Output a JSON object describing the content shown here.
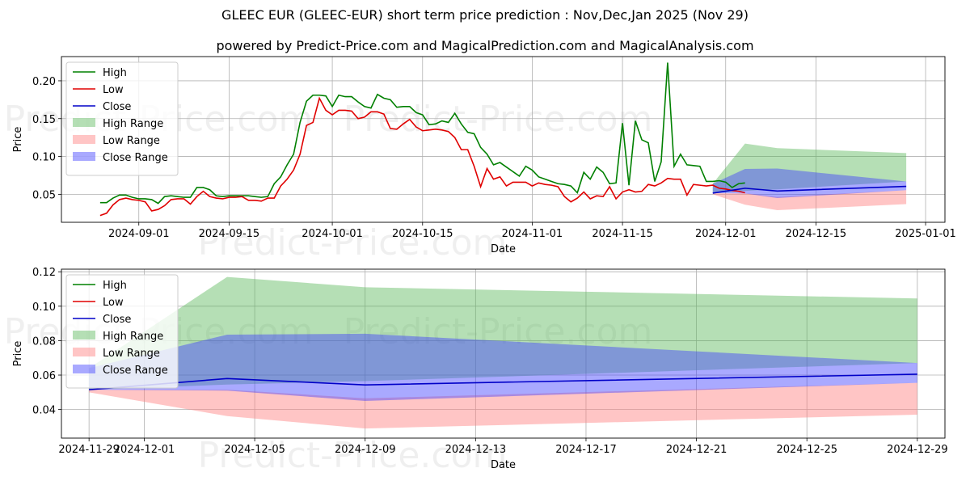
{
  "header": {
    "title": "GLEEC EUR (GLEEC-EUR) short term price prediction : Nov,Dec,Jan 2025 (Nov 29)",
    "subtitle": "powered by Predict-Price.com and MagicalPrediction.com and MagicalAnalysis.com"
  },
  "watermark": "Predict-Price.com",
  "colors": {
    "high": "#008000",
    "low": "#e00000",
    "close": "#0000c8",
    "high_range": "#5cb85c",
    "low_range": "#ff7f7f",
    "close_range": "#4040ff",
    "grid": "#b0b0b0"
  },
  "legend": [
    "High",
    "Low",
    "Close",
    "High Range",
    "Low Range",
    "Close Range"
  ],
  "chart_data": [
    {
      "type": "line",
      "xlabel": "Date",
      "ylabel": "Price",
      "xlim": [
        "2024-08-20",
        "2025-01-04"
      ],
      "ylim": [
        0.013,
        0.232
      ],
      "x_ticks": [
        "2024-09-01",
        "2024-09-15",
        "2024-10-01",
        "2024-10-15",
        "2024-11-01",
        "2024-11-15",
        "2024-12-01",
        "2024-12-15",
        "2025-01-01"
      ],
      "y_ticks": [
        0.05,
        0.1,
        0.15,
        0.2
      ],
      "y_tick_labels": [
        "0.05",
        "0.10",
        "0.15",
        "0.20"
      ],
      "history_start": "2024-08-26",
      "series": [
        {
          "name": "High",
          "values": [
            0.039,
            0.039,
            0.045,
            0.049,
            0.049,
            0.046,
            0.044,
            0.044,
            0.043,
            0.038,
            0.047,
            0.048,
            0.047,
            0.046,
            0.046,
            0.059,
            0.059,
            0.056,
            0.048,
            0.047,
            0.048,
            0.048,
            0.048,
            0.048,
            0.047,
            0.046,
            0.047,
            0.064,
            0.073,
            0.089,
            0.103,
            0.145,
            0.173,
            0.181,
            0.181,
            0.18,
            0.166,
            0.181,
            0.179,
            0.179,
            0.172,
            0.166,
            0.164,
            0.182,
            0.177,
            0.175,
            0.165,
            0.166,
            0.166,
            0.158,
            0.155,
            0.142,
            0.143,
            0.147,
            0.145,
            0.157,
            0.143,
            0.132,
            0.13,
            0.112,
            0.103,
            0.089,
            0.092,
            0.086,
            0.08,
            0.074,
            0.087,
            0.082,
            0.073,
            0.07,
            0.067,
            0.064,
            0.063,
            0.061,
            0.052,
            0.079,
            0.07,
            0.086,
            0.079,
            0.064,
            0.065,
            0.144,
            0.062,
            0.147,
            0.122,
            0.118,
            0.067,
            0.093,
            0.224,
            0.087,
            0.103,
            0.089,
            0.088,
            0.087,
            0.067,
            0.067,
            0.068,
            0.066,
            0.059,
            0.064,
            0.065
          ]
        },
        {
          "name": "Low",
          "values": [
            0.022,
            0.025,
            0.036,
            0.043,
            0.045,
            0.043,
            0.042,
            0.04,
            0.028,
            0.03,
            0.035,
            0.043,
            0.044,
            0.044,
            0.037,
            0.047,
            0.054,
            0.047,
            0.045,
            0.044,
            0.046,
            0.046,
            0.047,
            0.042,
            0.042,
            0.041,
            0.045,
            0.045,
            0.061,
            0.07,
            0.082,
            0.103,
            0.141,
            0.145,
            0.177,
            0.161,
            0.155,
            0.161,
            0.161,
            0.16,
            0.15,
            0.152,
            0.159,
            0.159,
            0.156,
            0.137,
            0.136,
            0.143,
            0.149,
            0.139,
            0.134,
            0.135,
            0.136,
            0.135,
            0.133,
            0.125,
            0.109,
            0.109,
            0.087,
            0.06,
            0.084,
            0.07,
            0.073,
            0.061,
            0.066,
            0.066,
            0.066,
            0.061,
            0.065,
            0.063,
            0.062,
            0.06,
            0.047,
            0.04,
            0.045,
            0.053,
            0.044,
            0.048,
            0.047,
            0.06,
            0.044,
            0.053,
            0.056,
            0.053,
            0.054,
            0.063,
            0.061,
            0.065,
            0.071,
            0.07,
            0.07,
            0.049,
            0.063,
            0.062,
            0.061,
            0.062,
            0.058,
            0.057,
            0.055,
            0.054,
            0.052
          ]
        }
      ],
      "forecast": {
        "dates": [
          "2024-11-29",
          "2024-12-04",
          "2024-12-09",
          "2024-12-29"
        ],
        "close": [
          0.0515,
          0.058,
          0.0543,
          0.0605
        ],
        "high_range": {
          "upper": [
            0.064,
            0.117,
            0.111,
            0.1045
          ],
          "lower": [
            0.0515,
            0.0545,
            0.0565,
            0.067
          ]
        },
        "low_range": {
          "upper": [
            0.0515,
            0.0515,
            0.0465,
            0.0555
          ],
          "lower": [
            0.05,
            0.0362,
            0.029,
            0.037
          ]
        },
        "close_range": {
          "upper": [
            0.064,
            0.0835,
            0.084,
            0.067
          ],
          "lower": [
            0.0515,
            0.051,
            0.045,
            0.0555
          ]
        }
      }
    },
    {
      "type": "line",
      "xlabel": "Date",
      "ylabel": "Price",
      "xlim": [
        "2024-11-28",
        "2024-12-30"
      ],
      "ylim": [
        0.0234,
        0.1215
      ],
      "x_ticks": [
        "2024-11-29",
        "2024-12-01",
        "2024-12-05",
        "2024-12-09",
        "2024-12-13",
        "2024-12-17",
        "2024-12-21",
        "2024-12-25",
        "2024-12-29"
      ],
      "y_ticks": [
        0.04,
        0.06,
        0.08,
        0.1,
        0.12
      ],
      "y_tick_labels": [
        "0.04",
        "0.06",
        "0.08",
        "0.10",
        "0.12"
      ],
      "forecast": {
        "dates": [
          "2024-11-29",
          "2024-12-04",
          "2024-12-09",
          "2024-12-29"
        ],
        "close": [
          0.0515,
          0.058,
          0.0543,
          0.0605
        ],
        "high_range": {
          "upper": [
            0.064,
            0.117,
            0.111,
            0.1045
          ],
          "lower": [
            0.0515,
            0.0545,
            0.0565,
            0.067
          ]
        },
        "low_range": {
          "upper": [
            0.0515,
            0.0515,
            0.0465,
            0.0555
          ],
          "lower": [
            0.05,
            0.0362,
            0.029,
            0.037
          ]
        },
        "close_range": {
          "upper": [
            0.064,
            0.0835,
            0.084,
            0.067
          ],
          "lower": [
            0.0515,
            0.051,
            0.045,
            0.0555
          ]
        }
      }
    }
  ]
}
